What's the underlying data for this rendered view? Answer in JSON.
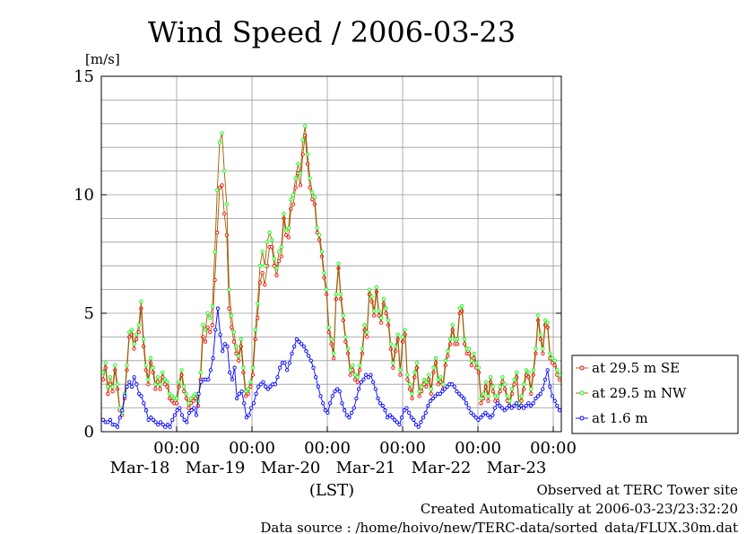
{
  "chart_data": {
    "type": "line",
    "title": "Wind Speed / 2006-03-23",
    "ylabel": "[m/s]",
    "xlabel": "(LST)",
    "ylim": [
      0,
      15
    ],
    "yticks": [
      "0",
      "5",
      "10",
      "15"
    ],
    "xticks": [
      {
        "time": "00:00",
        "date": "Mar-18"
      },
      {
        "time": "00:00",
        "date": "Mar-19"
      },
      {
        "time": "00:00",
        "date": "Mar-20"
      },
      {
        "time": "00:00",
        "date": "Mar-21"
      },
      {
        "time": "00:00",
        "date": "Mar-22"
      },
      {
        "time": "00:00",
        "date": "Mar-23"
      }
    ],
    "x_range_days": [
      "2006-03-17T18:00",
      "2006-03-24T00:00"
    ],
    "grid": true,
    "legend_position": "right",
    "series": [
      {
        "name": "at 29.5 m SE",
        "color": "#ff0000",
        "line_color": "#a05a00",
        "values": [
          2.2,
          2.7,
          1.6,
          2.0,
          1.7,
          2.6,
          1.8,
          0.9,
          0.7,
          1.4,
          2.6,
          4.0,
          4.1,
          3.5,
          3.9,
          4.2,
          5.2,
          3.6,
          2.6,
          2.0,
          2.9,
          2.5,
          1.8,
          2.1,
          1.8,
          2.3,
          2.0,
          1.9,
          1.4,
          1.3,
          1.2,
          1.2,
          1.9,
          2.4,
          1.7,
          1.4,
          1.0,
          1.2,
          1.3,
          1.4,
          1.1,
          2.2,
          4.0,
          3.8,
          4.4,
          4.2,
          4.5,
          6.4,
          8.4,
          10.3,
          10.4,
          9.2,
          8.3,
          5.2,
          4.4,
          3.8,
          3.3,
          3.0,
          3.6,
          2.5,
          1.5,
          1.6,
          1.9,
          2.4,
          3.9,
          4.8,
          6.3,
          6.7,
          6.2,
          7.0,
          7.8,
          7.8,
          7.0,
          6.6,
          7.2,
          7.4,
          9.0,
          8.3,
          8.2,
          9.4,
          9.6,
          10.3,
          10.9,
          10.4,
          11.7,
          12.5,
          11.3,
          10.3,
          9.8,
          9.6,
          8.4,
          8.1,
          7.4,
          6.5,
          5.8,
          4.2,
          3.7,
          3.1,
          5.6,
          6.9,
          5.6,
          4.7,
          3.8,
          3.3,
          2.4,
          2.6,
          2.2,
          2.1,
          2.6,
          3.3,
          4.3,
          4.0,
          5.8,
          5.5,
          4.9,
          5.9,
          4.9,
          4.6,
          5.4,
          5.0,
          4.5,
          3.5,
          2.7,
          3.4,
          3.9,
          2.4,
          3.8,
          4.1,
          2.2,
          1.8,
          1.4,
          2.3,
          2.7,
          1.5,
          1.7,
          2.0,
          1.9,
          2.2,
          1.6,
          2.5,
          2.9,
          2.0,
          2.1,
          1.8,
          2.8,
          3.2,
          3.7,
          4.3,
          3.7,
          3.7,
          5.0,
          5.1,
          3.7,
          3.3,
          3.3,
          2.8,
          3.1,
          2.7,
          2.5,
          1.2,
          1.4,
          1.9,
          1.3,
          2.1,
          1.7,
          1.3,
          1.3,
          1.7,
          2.1,
          1.8,
          1.3,
          1.1,
          1.6,
          2.0,
          2.3,
          1.0,
          1.3,
          1.8,
          2.4,
          2.3,
          1.6,
          2.4,
          3.3,
          4.7,
          3.9,
          3.3,
          4.5,
          4.4,
          3.1,
          2.9,
          2.8,
          2.4,
          2.2
        ]
      },
      {
        "name": "at 29.5 m NW",
        "color": "#00ff00",
        "line_color": "#a05a00",
        "values": [
          2.5,
          2.9,
          1.9,
          2.3,
          1.9,
          2.8,
          2.0,
          1.0,
          0.8,
          1.6,
          2.8,
          4.2,
          4.3,
          3.7,
          4.1,
          4.5,
          5.5,
          3.9,
          2.8,
          2.2,
          3.1,
          2.7,
          2.0,
          2.3,
          2.0,
          2.5,
          2.2,
          2.1,
          1.6,
          1.5,
          1.4,
          1.4,
          2.1,
          2.6,
          1.9,
          1.6,
          1.2,
          1.4,
          1.5,
          1.6,
          1.3,
          2.5,
          4.5,
          4.3,
          5.0,
          4.8,
          5.3,
          7.6,
          10.2,
          12.2,
          12.6,
          11.0,
          9.6,
          6.0,
          4.9,
          4.2,
          3.6,
          3.2,
          3.9,
          2.7,
          1.7,
          1.8,
          2.1,
          2.7,
          4.3,
          5.4,
          7.0,
          7.6,
          7.0,
          8.0,
          8.4,
          8.1,
          7.3,
          6.9,
          7.6,
          7.8,
          9.2,
          8.5,
          8.6,
          9.8,
          10.0,
          10.7,
          11.3,
          10.9,
          12.3,
          12.9,
          11.7,
          10.7,
          10.1,
          9.9,
          8.6,
          8.3,
          7.6,
          6.7,
          6.0,
          4.4,
          3.9,
          3.3,
          5.8,
          7.1,
          5.8,
          4.9,
          4.0,
          3.5,
          2.6,
          2.8,
          2.4,
          2.3,
          2.8,
          3.5,
          4.5,
          4.2,
          6.0,
          5.7,
          5.1,
          6.1,
          5.1,
          4.8,
          5.6,
          5.2,
          4.7,
          3.7,
          2.9,
          3.6,
          4.1,
          2.6,
          4.0,
          4.3,
          2.4,
          2.0,
          1.6,
          2.5,
          2.9,
          1.7,
          1.9,
          2.2,
          2.1,
          2.4,
          1.8,
          2.7,
          3.1,
          2.2,
          2.3,
          2.0,
          3.0,
          3.4,
          3.9,
          4.5,
          3.9,
          3.9,
          5.2,
          5.3,
          3.9,
          3.5,
          3.5,
          3.0,
          3.3,
          2.9,
          2.7,
          1.4,
          1.6,
          2.1,
          1.5,
          2.3,
          1.9,
          1.5,
          1.5,
          1.9,
          2.3,
          2.0,
          1.5,
          1.3,
          1.8,
          2.2,
          2.5,
          1.2,
          1.5,
          2.0,
          2.6,
          2.5,
          1.8,
          2.6,
          3.5,
          4.9,
          4.1,
          3.5,
          4.7,
          4.6,
          3.3,
          3.1,
          3.0,
          2.6,
          2.4
        ]
      },
      {
        "name": "at 1.6 m",
        "color": "#0000ff",
        "line_color": "#0000ff",
        "values": [
          0.5,
          0.4,
          0.4,
          0.5,
          0.3,
          0.3,
          0.2,
          0.6,
          0.9,
          1.5,
          1.9,
          2.1,
          1.9,
          2.3,
          2.0,
          1.6,
          1.5,
          1.2,
          0.9,
          0.5,
          0.6,
          0.5,
          0.4,
          0.3,
          0.4,
          0.3,
          0.2,
          0.3,
          0.2,
          0.5,
          0.7,
          0.9,
          1.0,
          0.7,
          0.5,
          0.4,
          0.8,
          0.9,
          1.0,
          0.7,
          1.6,
          2.1,
          2.2,
          2.2,
          2.2,
          2.6,
          3.1,
          4.3,
          5.2,
          4.1,
          3.4,
          3.7,
          3.6,
          2.5,
          2.2,
          2.7,
          1.4,
          1.6,
          1.7,
          1.2,
          0.6,
          0.7,
          1.0,
          1.2,
          1.6,
          1.9,
          2.0,
          2.1,
          1.9,
          1.8,
          1.9,
          2.0,
          2.0,
          2.3,
          2.7,
          2.9,
          2.9,
          2.6,
          2.9,
          3.3,
          3.6,
          3.9,
          3.8,
          3.7,
          3.6,
          3.4,
          3.2,
          3.0,
          2.7,
          2.3,
          1.9,
          1.5,
          1.2,
          0.9,
          0.8,
          1.2,
          1.5,
          1.7,
          1.8,
          1.7,
          1.2,
          0.9,
          0.7,
          0.6,
          0.8,
          1.0,
          1.4,
          1.8,
          2.1,
          2.2,
          2.4,
          2.3,
          2.4,
          2.1,
          1.8,
          1.4,
          1.2,
          1.1,
          0.9,
          0.6,
          0.7,
          0.6,
          0.5,
          0.4,
          0.3,
          0.6,
          0.9,
          1.0,
          0.8,
          0.6,
          0.5,
          0.3,
          0.2,
          0.4,
          0.6,
          0.8,
          1.1,
          1.3,
          1.4,
          1.5,
          1.6,
          1.6,
          1.7,
          1.8,
          1.9,
          2.0,
          2.0,
          1.9,
          1.7,
          1.6,
          1.5,
          1.4,
          1.2,
          1.0,
          0.8,
          0.7,
          0.6,
          0.5,
          0.6,
          0.7,
          0.8,
          0.7,
          0.6,
          0.7,
          1.0,
          1.2,
          1.1,
          1.0,
          0.9,
          1.0,
          1.1,
          1.0,
          1.1,
          1.2,
          1.0,
          1.1,
          1.0,
          1.1,
          1.2,
          1.1,
          1.2,
          1.4,
          1.5,
          1.6,
          1.8,
          2.2,
          2.6,
          1.9,
          1.5,
          1.3,
          1.1,
          0.9
        ]
      }
    ]
  },
  "notes": {
    "line1": "Observed at TERC Tower site",
    "line2": "Created Automatically at 2006-03-23/23:32:20",
    "line3": "Data source : /home/hoivo/new/TERC-data/sorted_data/FLUX.30m.dat"
  }
}
